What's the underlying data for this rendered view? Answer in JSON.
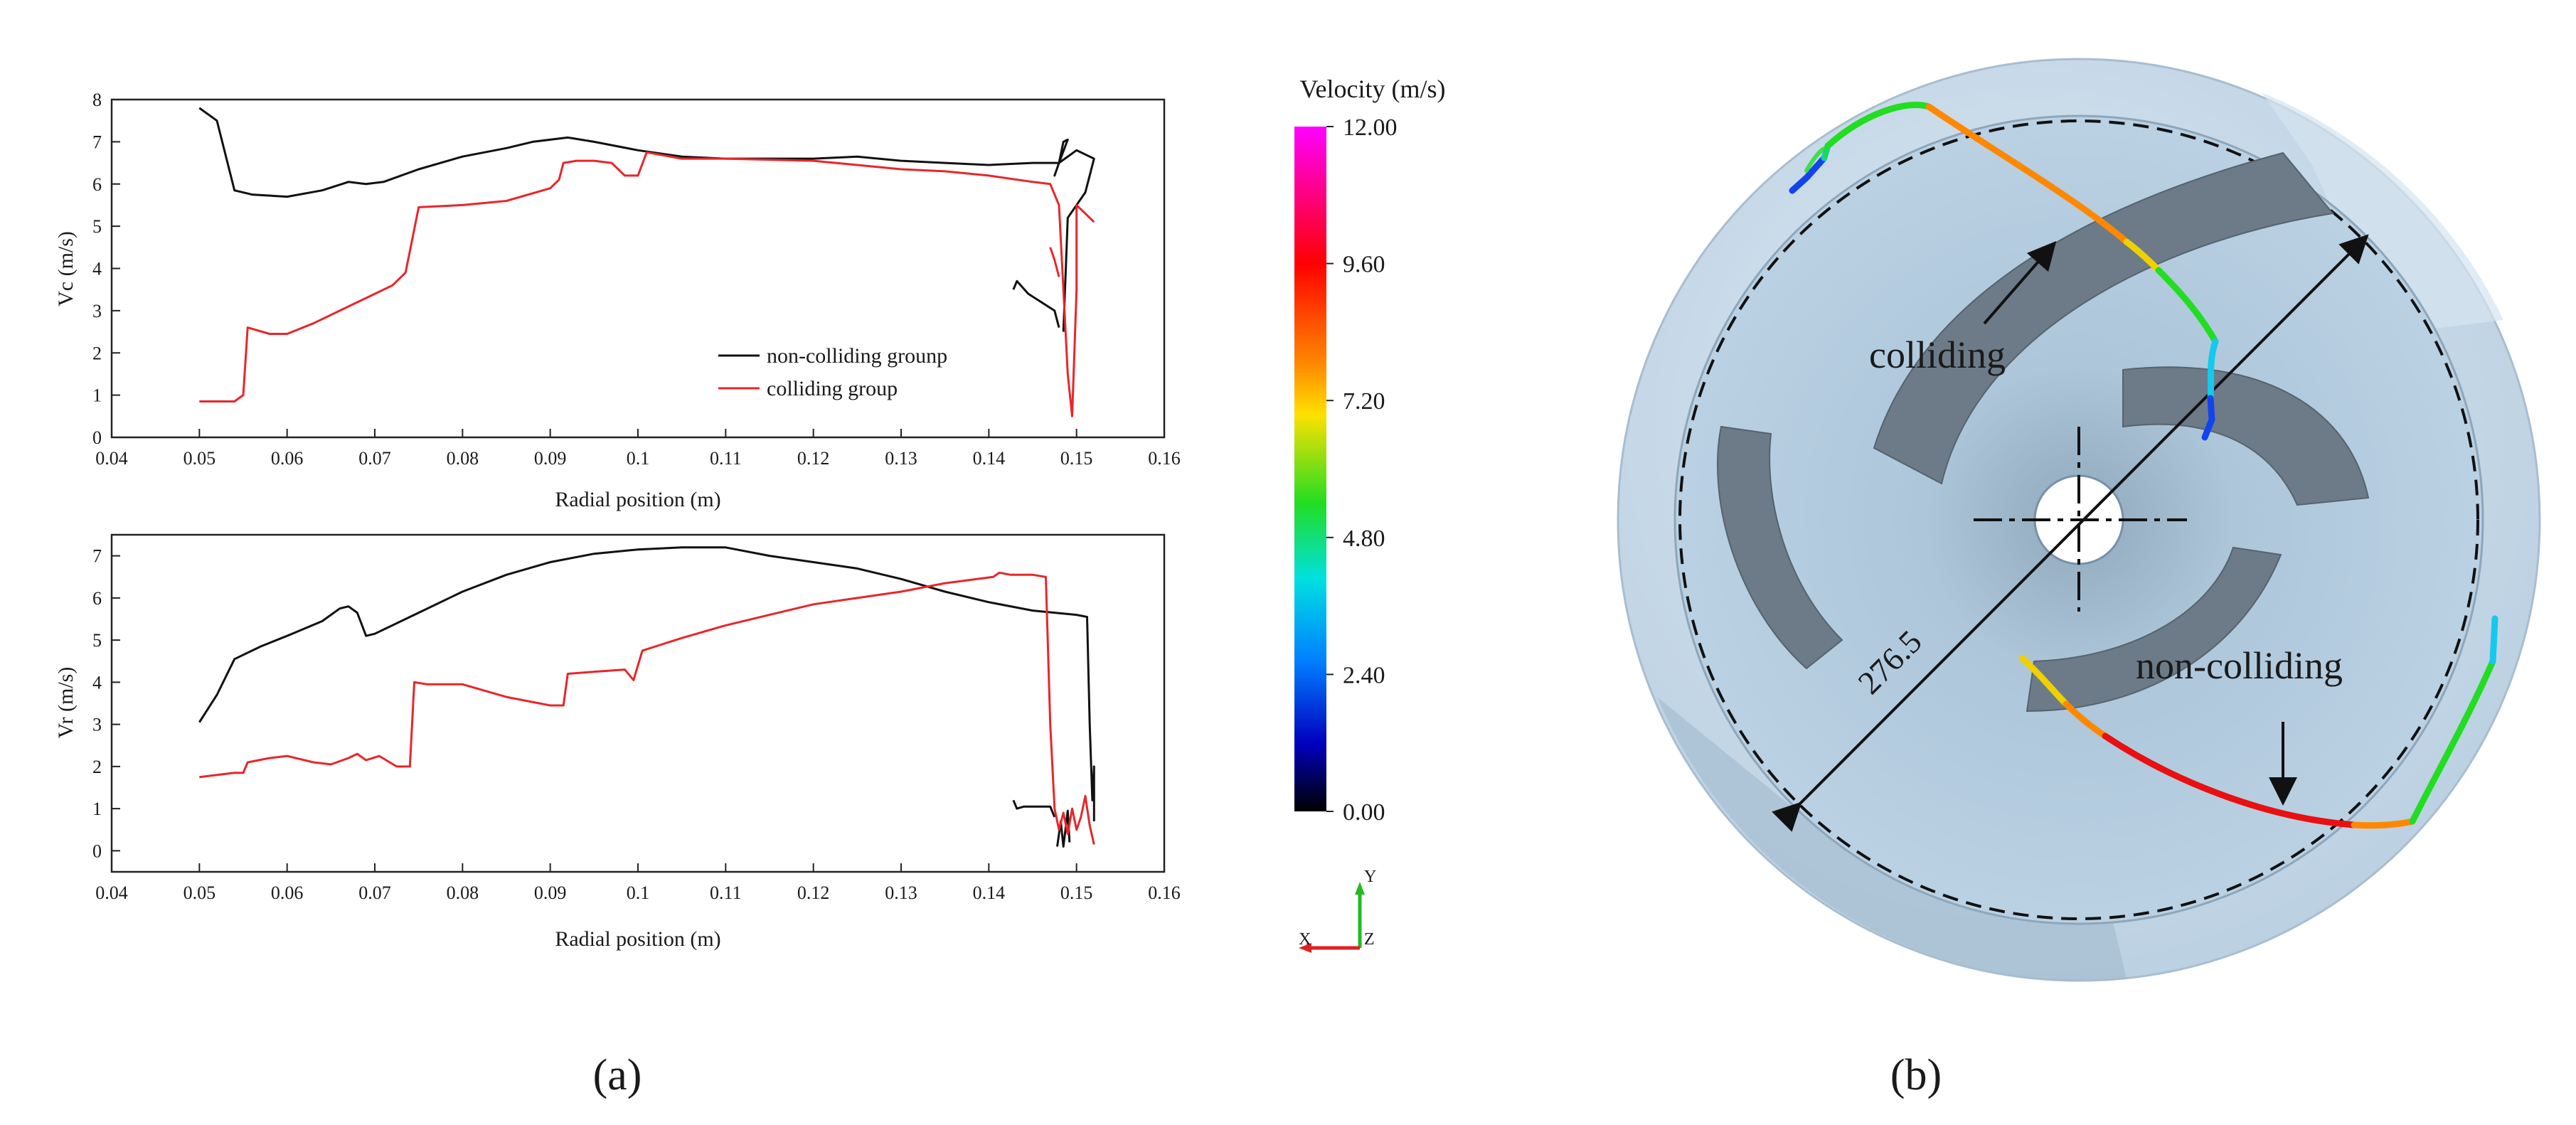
{
  "chart_data": [
    {
      "type": "line",
      "panel": "a-top",
      "xlabel": "Radial position (m)",
      "ylabel": "Vc (m/s)",
      "ylabel_main": "Vc",
      "ylabel_unit": "(m/s)",
      "xlim": [
        0.04,
        0.16
      ],
      "ylim": [
        0,
        8
      ],
      "xticks": [
        0.04,
        0.05,
        0.06,
        0.07,
        0.08,
        0.09,
        0.1,
        0.11,
        0.12,
        0.13,
        0.14,
        0.15,
        0.16
      ],
      "xtick_labels": [
        "0.04",
        "0.05",
        "0.06",
        "0.07",
        "0.08",
        "0.09",
        "0.1",
        "0.11",
        "0.12",
        "0.13",
        "0.14",
        "0.15",
        "0.16"
      ],
      "yticks": [
        0,
        1,
        2,
        3,
        4,
        5,
        6,
        7,
        8
      ],
      "ytick_labels": [
        "0",
        "1",
        "2",
        "3",
        "4",
        "5",
        "6",
        "7",
        "8"
      ],
      "legend": [
        "non-colliding grounp",
        "colliding group"
      ],
      "series": [
        {
          "name": "non-colliding grounp",
          "color": "#111111",
          "x": [
            0.05,
            0.052,
            0.054,
            0.056,
            0.06,
            0.064,
            0.067,
            0.069,
            0.071,
            0.075,
            0.08,
            0.085,
            0.088,
            0.092,
            0.095,
            0.1,
            0.105,
            0.11,
            0.115,
            0.12,
            0.125,
            0.13,
            0.135,
            0.14,
            0.145,
            0.148,
            0.1485,
            0.149,
            0.148,
            0.1475,
            0.148,
            0.15,
            0.152,
            0.151,
            0.149,
            0.1485
          ],
          "y": [
            7.8,
            7.5,
            5.85,
            5.75,
            5.7,
            5.85,
            6.05,
            6.0,
            6.05,
            6.35,
            6.65,
            6.85,
            7.0,
            7.1,
            7.0,
            6.8,
            6.65,
            6.6,
            6.6,
            6.6,
            6.65,
            6.55,
            6.5,
            6.45,
            6.5,
            6.5,
            7.0,
            7.05,
            6.5,
            6.2,
            6.5,
            6.8,
            6.6,
            5.8,
            5.2,
            2.5
          ],
          "extra_segments": [
            {
              "x": [
                0.1428,
                0.1432,
                0.1445,
                0.146,
                0.1475,
                0.148
              ],
              "y": [
                3.5,
                3.7,
                3.4,
                3.2,
                3.0,
                2.6
              ]
            }
          ]
        },
        {
          "name": "colliding group",
          "color": "#e8262a",
          "x": [
            0.05,
            0.052,
            0.054,
            0.055,
            0.0555,
            0.058,
            0.06,
            0.063,
            0.066,
            0.069,
            0.072,
            0.0735,
            0.075,
            0.08,
            0.085,
            0.09,
            0.091,
            0.0915,
            0.093,
            0.095,
            0.097,
            0.0985,
            0.1,
            0.101,
            0.105,
            0.11,
            0.12,
            0.125,
            0.13,
            0.135,
            0.14,
            0.145,
            0.147,
            0.148,
            0.1485,
            0.149,
            0.1495,
            0.15,
            0.15,
            0.151,
            0.152
          ],
          "y": [
            0.85,
            0.85,
            0.85,
            1.0,
            2.6,
            2.45,
            2.45,
            2.7,
            3.0,
            3.3,
            3.6,
            3.9,
            5.45,
            5.5,
            5.6,
            5.9,
            6.1,
            6.5,
            6.55,
            6.55,
            6.5,
            6.2,
            6.2,
            6.75,
            6.6,
            6.6,
            6.55,
            6.45,
            6.35,
            6.3,
            6.2,
            6.05,
            6.0,
            5.5,
            3.5,
            1.5,
            0.5,
            3.5,
            5.5,
            5.3,
            5.1
          ],
          "extra_segments": [
            {
              "x": [
                0.147,
                0.1475,
                0.148
              ],
              "y": [
                4.5,
                4.2,
                3.8
              ]
            }
          ]
        }
      ]
    },
    {
      "type": "line",
      "panel": "a-bottom",
      "xlabel": "Radial position (m)",
      "ylabel": "Vr (m/s)",
      "ylabel_main": "Vr",
      "ylabel_unit": "(m/s)",
      "xlim": [
        0.04,
        0.16
      ],
      "ylim": [
        -0.5,
        7.5
      ],
      "xticks": [
        0.04,
        0.05,
        0.06,
        0.07,
        0.08,
        0.09,
        0.1,
        0.11,
        0.12,
        0.13,
        0.14,
        0.15,
        0.16
      ],
      "xtick_labels": [
        "0.04",
        "0.05",
        "0.06",
        "0.07",
        "0.08",
        "0.09",
        "0.1",
        "0.11",
        "0.12",
        "0.13",
        "0.14",
        "0.15",
        "0.16"
      ],
      "yticks": [
        0,
        1,
        2,
        3,
        4,
        5,
        6,
        7
      ],
      "ytick_labels": [
        "0",
        "1",
        "2",
        "3",
        "4",
        "5",
        "6",
        "7"
      ],
      "series": [
        {
          "name": "non-colliding grounp",
          "color": "#111111",
          "x": [
            0.05,
            0.052,
            0.054,
            0.057,
            0.06,
            0.064,
            0.066,
            0.067,
            0.068,
            0.069,
            0.07,
            0.075,
            0.08,
            0.085,
            0.09,
            0.095,
            0.1,
            0.105,
            0.11,
            0.115,
            0.12,
            0.125,
            0.13,
            0.135,
            0.14,
            0.145,
            0.15,
            0.1512,
            0.1515,
            0.1518,
            0.152,
            0.152
          ],
          "y": [
            3.05,
            3.7,
            4.55,
            4.85,
            5.1,
            5.45,
            5.75,
            5.8,
            5.65,
            5.1,
            5.15,
            5.65,
            6.15,
            6.55,
            6.85,
            7.05,
            7.15,
            7.2,
            7.2,
            7.0,
            6.85,
            6.7,
            6.45,
            6.15,
            5.9,
            5.7,
            5.6,
            5.55,
            3.0,
            1.2,
            2.0,
            0.7
          ],
          "extra_segments": [
            {
              "x": [
                0.1428,
                0.1432,
                0.144,
                0.146,
                0.147,
                0.1475
              ],
              "y": [
                1.2,
                1.0,
                1.05,
                1.05,
                1.05,
                0.8
              ]
            },
            {
              "x": [
                0.1478,
                0.1482,
                0.1485,
                0.149,
                0.1492
              ],
              "y": [
                0.1,
                0.7,
                0.1,
                0.95,
                0.2
              ]
            }
          ]
        },
        {
          "name": "colliding group",
          "color": "#e8262a",
          "x": [
            0.05,
            0.052,
            0.054,
            0.055,
            0.0555,
            0.058,
            0.06,
            0.063,
            0.065,
            0.067,
            0.068,
            0.069,
            0.0705,
            0.0725,
            0.074,
            0.0745,
            0.076,
            0.08,
            0.085,
            0.09,
            0.0915,
            0.092,
            0.095,
            0.0985,
            0.0995,
            0.1005,
            0.102,
            0.105,
            0.11,
            0.115,
            0.12,
            0.125,
            0.13,
            0.135,
            0.1405,
            0.1412,
            0.1425,
            0.145,
            0.1465,
            0.147,
            0.1475,
            0.148,
            0.1485,
            0.149,
            0.1495,
            0.15,
            0.1505,
            0.151,
            0.1515,
            0.152
          ],
          "y": [
            1.75,
            1.8,
            1.85,
            1.85,
            2.1,
            2.2,
            2.25,
            2.1,
            2.05,
            2.2,
            2.3,
            2.15,
            2.25,
            2.0,
            2.0,
            4.0,
            3.95,
            3.95,
            3.65,
            3.45,
            3.45,
            4.2,
            4.25,
            4.3,
            4.05,
            4.75,
            4.85,
            5.05,
            5.35,
            5.6,
            5.85,
            6.0,
            6.15,
            6.35,
            6.5,
            6.6,
            6.55,
            6.55,
            6.5,
            3.0,
            1.0,
            0.5,
            0.9,
            0.4,
            1.0,
            0.5,
            0.8,
            1.3,
            0.6,
            0.15
          ]
        }
      ]
    }
  ],
  "colorbar": {
    "title": "Velocity (m/s)",
    "ticks": [
      "12.00",
      "9.60",
      "7.20",
      "4.80",
      "2.40",
      "0.00"
    ],
    "tick_values": [
      12,
      9.6,
      7.2,
      4.8,
      2.4,
      0
    ],
    "colors": [
      "#ff00ff",
      "#ff0000",
      "#ff8c00",
      "#ffe000",
      "#22dd22",
      "#00e0e0",
      "#0080ff",
      "#0000c0",
      "#000000"
    ]
  },
  "triad": {
    "y": "Y",
    "x": "X",
    "z": "Z"
  },
  "panel_labels": {
    "a": "(a)",
    "b": "(b)"
  },
  "annotations": {
    "colliding": "colliding",
    "non_colliding": "non-colliding",
    "diameter": "276.5"
  },
  "trajectory_colors": {
    "slow": "#1144ee",
    "cyan": "#14c8ee",
    "green": "#22dd22",
    "yellow": "#f0d000",
    "orange": "#ff8800",
    "red": "#e81010"
  },
  "impeller_colors": {
    "casing": "#ccdcea",
    "blade": "#6d7b88",
    "back_plate": "#a8c6dd",
    "hub": "#ffffff"
  }
}
